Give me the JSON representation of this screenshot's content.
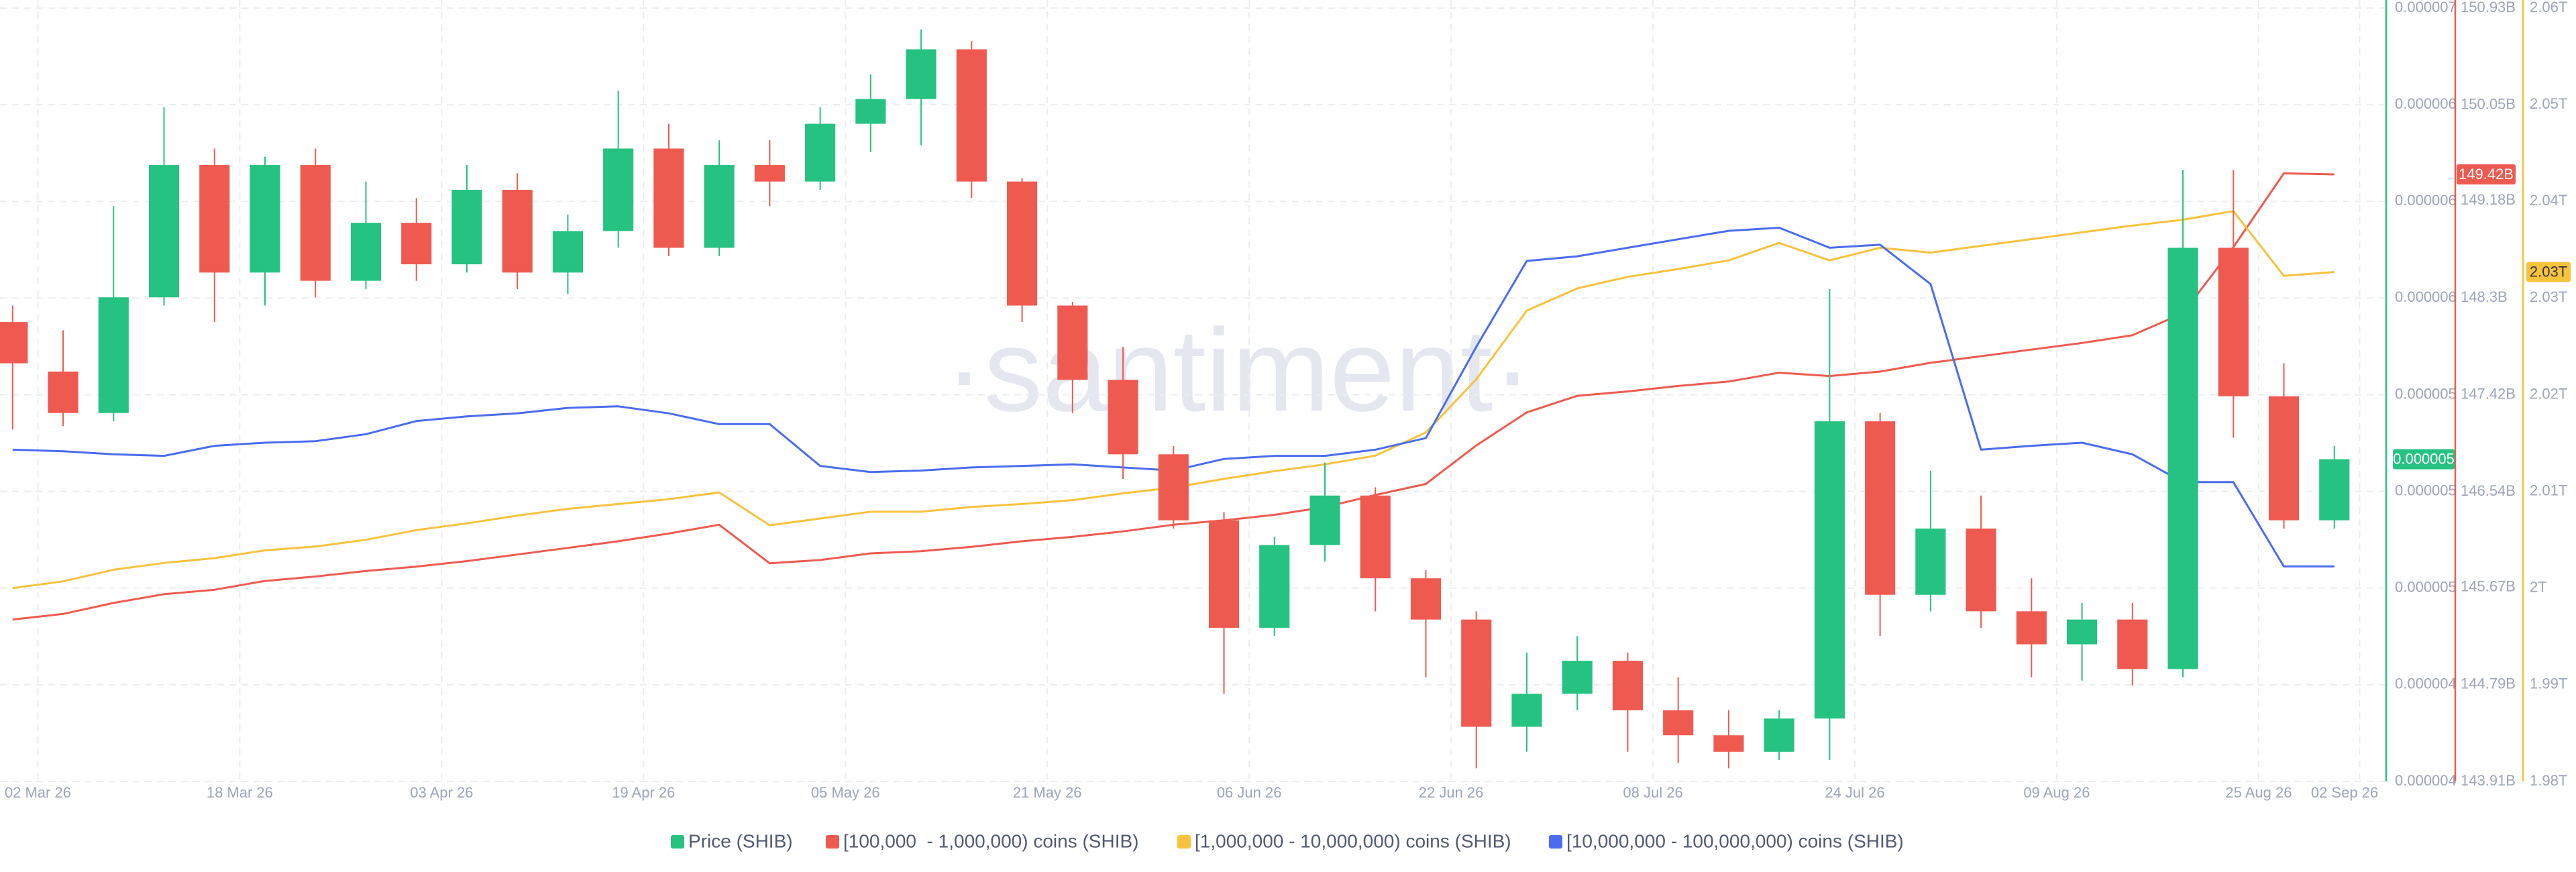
{
  "chart_data": {
    "type": "candlestick",
    "watermark": "·santiment·",
    "legend": "bottom",
    "grid": true,
    "x": [
      "2026-02-28",
      "2026-03-04",
      "2026-03-08",
      "2026-03-12",
      "2026-03-16",
      "2026-03-20",
      "2026-03-24",
      "2026-03-28",
      "2026-04-01",
      "2026-04-05",
      "2026-04-09",
      "2026-04-13",
      "2026-04-17",
      "2026-04-21",
      "2026-04-25",
      "2026-04-29",
      "2026-05-03",
      "2026-05-07",
      "2026-05-11",
      "2026-05-15",
      "2026-05-19",
      "2026-05-23",
      "2026-05-27",
      "2026-05-31",
      "2026-06-04",
      "2026-06-08",
      "2026-06-12",
      "2026-06-16",
      "2026-06-20",
      "2026-06-24",
      "2026-06-28",
      "2026-07-02",
      "2026-07-06",
      "2026-07-10",
      "2026-07-14",
      "2026-07-18",
      "2026-07-22",
      "2026-07-26",
      "2026-07-30",
      "2026-08-03",
      "2026-08-07",
      "2026-08-11",
      "2026-08-15",
      "2026-08-19",
      "2026-08-23",
      "2026-08-27",
      "2026-08-31"
    ],
    "xlim": [
      "2026-02-27",
      "2026-09-04"
    ],
    "xticks": [
      {
        "value": "2026-03-02",
        "label": "02 Mar 26"
      },
      {
        "value": "2026-03-18",
        "label": "18 Mar 26"
      },
      {
        "value": "2026-04-03",
        "label": "03 Apr 26"
      },
      {
        "value": "2026-04-19",
        "label": "19 Apr 26"
      },
      {
        "value": "2026-05-05",
        "label": "05 May 26"
      },
      {
        "value": "2026-05-21",
        "label": "21 May 26"
      },
      {
        "value": "2026-06-06",
        "label": "06 Jun 26"
      },
      {
        "value": "2026-06-22",
        "label": "22 Jun 26"
      },
      {
        "value": "2026-07-08",
        "label": "08 Jul 26"
      },
      {
        "value": "2026-07-24",
        "label": "24 Jul 26"
      },
      {
        "value": "2026-08-09",
        "label": "09 Aug 26"
      },
      {
        "value": "2026-08-25",
        "label": "25 Aug 26"
      },
      {
        "value": "2026-09-02",
        "label": "02 Sep 26"
      }
    ],
    "ylim": [
      4e-06,
      7e-06
    ],
    "yticks": [
      {
        "value": 4e-06,
        "label": "0.000004"
      },
      {
        "value": 4.375e-06,
        "label": "0.000004"
      },
      {
        "value": 4.75e-06,
        "label": "0.000005"
      },
      {
        "value": 5.125e-06,
        "label": "0.000005"
      },
      {
        "value": 5.5e-06,
        "label": "0.000005"
      },
      {
        "value": 5.875e-06,
        "label": "0.000006"
      },
      {
        "value": 6.25e-06,
        "label": "0.000006"
      },
      {
        "value": 6.625e-06,
        "label": "0.000006"
      },
      {
        "value": 7e-06,
        "label": "0.000007"
      }
    ],
    "y2lim": [
      143910000000.0,
      150930000000.0
    ],
    "y2ticks": [
      {
        "value": 143910000000.0,
        "label": "143.91B"
      },
      {
        "value": 144790000000.0,
        "label": "144.79B"
      },
      {
        "value": 145670000000.0,
        "label": "145.67B"
      },
      {
        "value": 146540000000.0,
        "label": "146.54B"
      },
      {
        "value": 147420000000.0,
        "label": "147.42B"
      },
      {
        "value": 148300000000.0,
        "label": "148.3B"
      },
      {
        "value": 149180000000.0,
        "label": "149.18B"
      },
      {
        "value": 150050000000.0,
        "label": "150.05B"
      },
      {
        "value": 150930000000.0,
        "label": "150.93B"
      }
    ],
    "y3lim": [
      1980000000000.0,
      2060000000000.0
    ],
    "y3ticks": [
      {
        "value": 1980000000000.0,
        "label": "1.98T"
      },
      {
        "value": 1990000000000.0,
        "label": "1.99T"
      },
      {
        "value": 2000000000000.0,
        "label": "2T"
      },
      {
        "value": 2010000000000.0,
        "label": "2.01T"
      },
      {
        "value": 2020000000000.0,
        "label": "2.02T"
      },
      {
        "value": 2030000000000.0,
        "label": "2.03T"
      },
      {
        "value": 2040000000000.0,
        "label": "2.04T"
      },
      {
        "value": 2050000000000.0,
        "label": "2.05T"
      },
      {
        "value": 2060000000000.0,
        "label": "2.06T"
      }
    ],
    "y4lim": [
      0,
      100
    ],
    "series": [
      {
        "name": "Price (SHIB)",
        "type": "candlestick",
        "axis": "y",
        "color": "#26c281",
        "up_color": "#26c281",
        "down_color": "#ef5a50",
        "last_label": "0.000005",
        "open": [
          5.782e-06,
          5.59e-06,
          5.429e-06,
          5.878e-06,
          6.391e-06,
          5.974e-06,
          6.391e-06,
          5.942e-06,
          6.167e-06,
          6.006e-06,
          6.295e-06,
          5.974e-06,
          6.135e-06,
          6.455e-06,
          6.07e-06,
          6.391e-06,
          6.327e-06,
          6.551e-06,
          6.647e-06,
          6.84e-06,
          6.327e-06,
          5.846e-06,
          5.558e-06,
          5.269e-06,
          5.013e-06,
          4.596e-06,
          4.917e-06,
          5.109e-06,
          4.788e-06,
          4.628e-06,
          4.212e-06,
          4.34e-06,
          4.468e-06,
          4.276e-06,
          4.179e-06,
          4.115e-06,
          4.244e-06,
          5.397e-06,
          4.724e-06,
          4.981e-06,
          4.66e-06,
          4.532e-06,
          4.628e-06,
          4.436e-06,
          6.07e-06,
          5.494e-06,
          5.013e-06
        ],
        "high": [
          5.846e-06,
          5.75e-06,
          6.231e-06,
          6.615e-06,
          6.455e-06,
          6.423e-06,
          6.455e-06,
          6.327e-06,
          6.263e-06,
          6.391e-06,
          6.359e-06,
          6.199e-06,
          6.679e-06,
          6.551e-06,
          6.487e-06,
          6.487e-06,
          6.615e-06,
          6.743e-06,
          6.917e-06,
          6.872e-06,
          6.34e-06,
          5.86e-06,
          5.686e-06,
          5.301e-06,
          5.045e-06,
          4.949e-06,
          5.237e-06,
          5.141e-06,
          4.82e-06,
          4.66e-06,
          4.5e-06,
          4.564e-06,
          4.5e-06,
          4.404e-06,
          4.276e-06,
          4.276e-06,
          5.91e-06,
          5.429e-06,
          5.205e-06,
          5.109e-06,
          4.788e-06,
          4.692e-06,
          4.692e-06,
          6.372e-06,
          6.372e-06,
          5.622e-06,
          5.301e-06
        ],
        "low": [
          5.365e-06,
          5.378e-06,
          5.397e-06,
          5.846e-06,
          5.782e-06,
          5.846e-06,
          5.878e-06,
          5.91e-06,
          5.942e-06,
          5.974e-06,
          5.91e-06,
          5.891e-06,
          6.07e-06,
          6.038e-06,
          6.038e-06,
          6.231e-06,
          6.295e-06,
          6.442e-06,
          6.468e-06,
          6.263e-06,
          5.782e-06,
          5.429e-06,
          5.173e-06,
          4.981e-06,
          4.34e-06,
          4.564e-06,
          4.853e-06,
          4.66e-06,
          4.404e-06,
          4.051e-06,
          4.115e-06,
          4.276e-06,
          4.115e-06,
          4.071e-06,
          4.051e-06,
          4.083e-06,
          4.083e-06,
          4.564e-06,
          4.66e-06,
          4.596e-06,
          4.404e-06,
          4.391e-06,
          4.372e-06,
          4.404e-06,
          5.333e-06,
          4.981e-06,
          4.981e-06
        ],
        "close": [
          5.622e-06,
          5.429e-06,
          5.878e-06,
          6.391e-06,
          5.974e-06,
          6.391e-06,
          5.942e-06,
          6.167e-06,
          6.006e-06,
          6.295e-06,
          5.974e-06,
          6.135e-06,
          6.455e-06,
          6.07e-06,
          6.391e-06,
          6.327e-06,
          6.551e-06,
          6.647e-06,
          6.84e-06,
          6.327e-06,
          5.846e-06,
          5.558e-06,
          5.269e-06,
          5.013e-06,
          4.596e-06,
          4.917e-06,
          5.109e-06,
          4.788e-06,
          4.628e-06,
          4.212e-06,
          4.34e-06,
          4.468e-06,
          4.276e-06,
          4.179e-06,
          4.115e-06,
          4.244e-06,
          5.397e-06,
          4.724e-06,
          4.981e-06,
          4.66e-06,
          4.532e-06,
          4.628e-06,
          4.436e-06,
          6.07e-06,
          5.494e-06,
          5.013e-06,
          5.25e-06
        ]
      },
      {
        "name": "[100,000  - 1,000,000) coins (SHIB)",
        "type": "line",
        "axis": "y2",
        "color": "#ef5a50",
        "last_label": "149.42B",
        "values": [
          145380000000.0,
          145430000000.0,
          145530000000.0,
          145610000000.0,
          145650000000.0,
          145730000000.0,
          145770000000.0,
          145820000000.0,
          145860000000.0,
          145910000000.0,
          145970000000.0,
          146030000000.0,
          146090000000.0,
          146160000000.0,
          146240000000.0,
          145890000000.0,
          145920000000.0,
          145980000000.0,
          146000000000.0,
          146040000000.0,
          146090000000.0,
          146130000000.0,
          146180000000.0,
          146240000000.0,
          146280000000.0,
          146330000000.0,
          146400000000.0,
          146510000000.0,
          146610000000.0,
          146960000000.0,
          147260000000.0,
          147410000000.0,
          147450000000.0,
          147500000000.0,
          147540000000.0,
          147620000000.0,
          147590000000.0,
          147630000000.0,
          147710000000.0,
          147770000000.0,
          147830000000.0,
          147890000000.0,
          147960000000.0,
          148160000000.0,
          148760000000.0,
          149430000000.0,
          149420000000.0
        ]
      },
      {
        "name": "[1,000,000 - 10,000,000) coins (SHIB)",
        "type": "line",
        "axis": "y3",
        "color": "#f7c23c",
        "last_label": "2.03T",
        "values": [
          2000000000000.0,
          2000700000000.0,
          2001900000000.0,
          2002600000000.0,
          2003100000000.0,
          2003900000000.0,
          2004300000000.0,
          2005000000000.0,
          2006000000000.0,
          2006700000000.0,
          2007500000000.0,
          2008200000000.0,
          2008700000000.0,
          2009200000000.0,
          2009900000000.0,
          2006500000000.0,
          2007200000000.0,
          2007900000000.0,
          2007900000000.0,
          2008400000000.0,
          2008700000000.0,
          2009100000000.0,
          2009800000000.0,
          2010400000000.0,
          2011300000000.0,
          2012100000000.0,
          2012800000000.0,
          2013700000000.0,
          2016100000000.0,
          2021600000000.0,
          2028700000000.0,
          2031000000000.0,
          2032200000000.0,
          2033000000000.0,
          2033900000000.0,
          2035700000000.0,
          2033900000000.0,
          2035200000000.0,
          2034700000000.0,
          2035400000000.0,
          2036100000000.0,
          2036800000000.0,
          2037500000000.0,
          2038100000000.0,
          2039000000000.0,
          2032300000000.0,
          2032700000000.0
        ]
      },
      {
        "name": "[10,000,000 - 100,000,000) coins (SHIB)",
        "type": "line",
        "axis": "y4",
        "color": "#4a6cf0",
        "values": [
          42.9,
          42.7,
          42.3,
          42.1,
          43.4,
          43.8,
          44.0,
          44.9,
          46.6,
          47.2,
          47.6,
          48.3,
          48.5,
          47.6,
          46.2,
          46.2,
          40.8,
          40.0,
          40.2,
          40.6,
          40.8,
          41.0,
          40.6,
          40.2,
          41.7,
          42.1,
          42.1,
          42.9,
          44.4,
          56.2,
          67.3,
          67.9,
          69.0,
          70.1,
          71.2,
          71.6,
          69.0,
          69.4,
          64.3,
          42.9,
          43.4,
          43.8,
          42.3,
          38.7,
          38.7,
          27.8,
          27.8
        ]
      }
    ]
  }
}
